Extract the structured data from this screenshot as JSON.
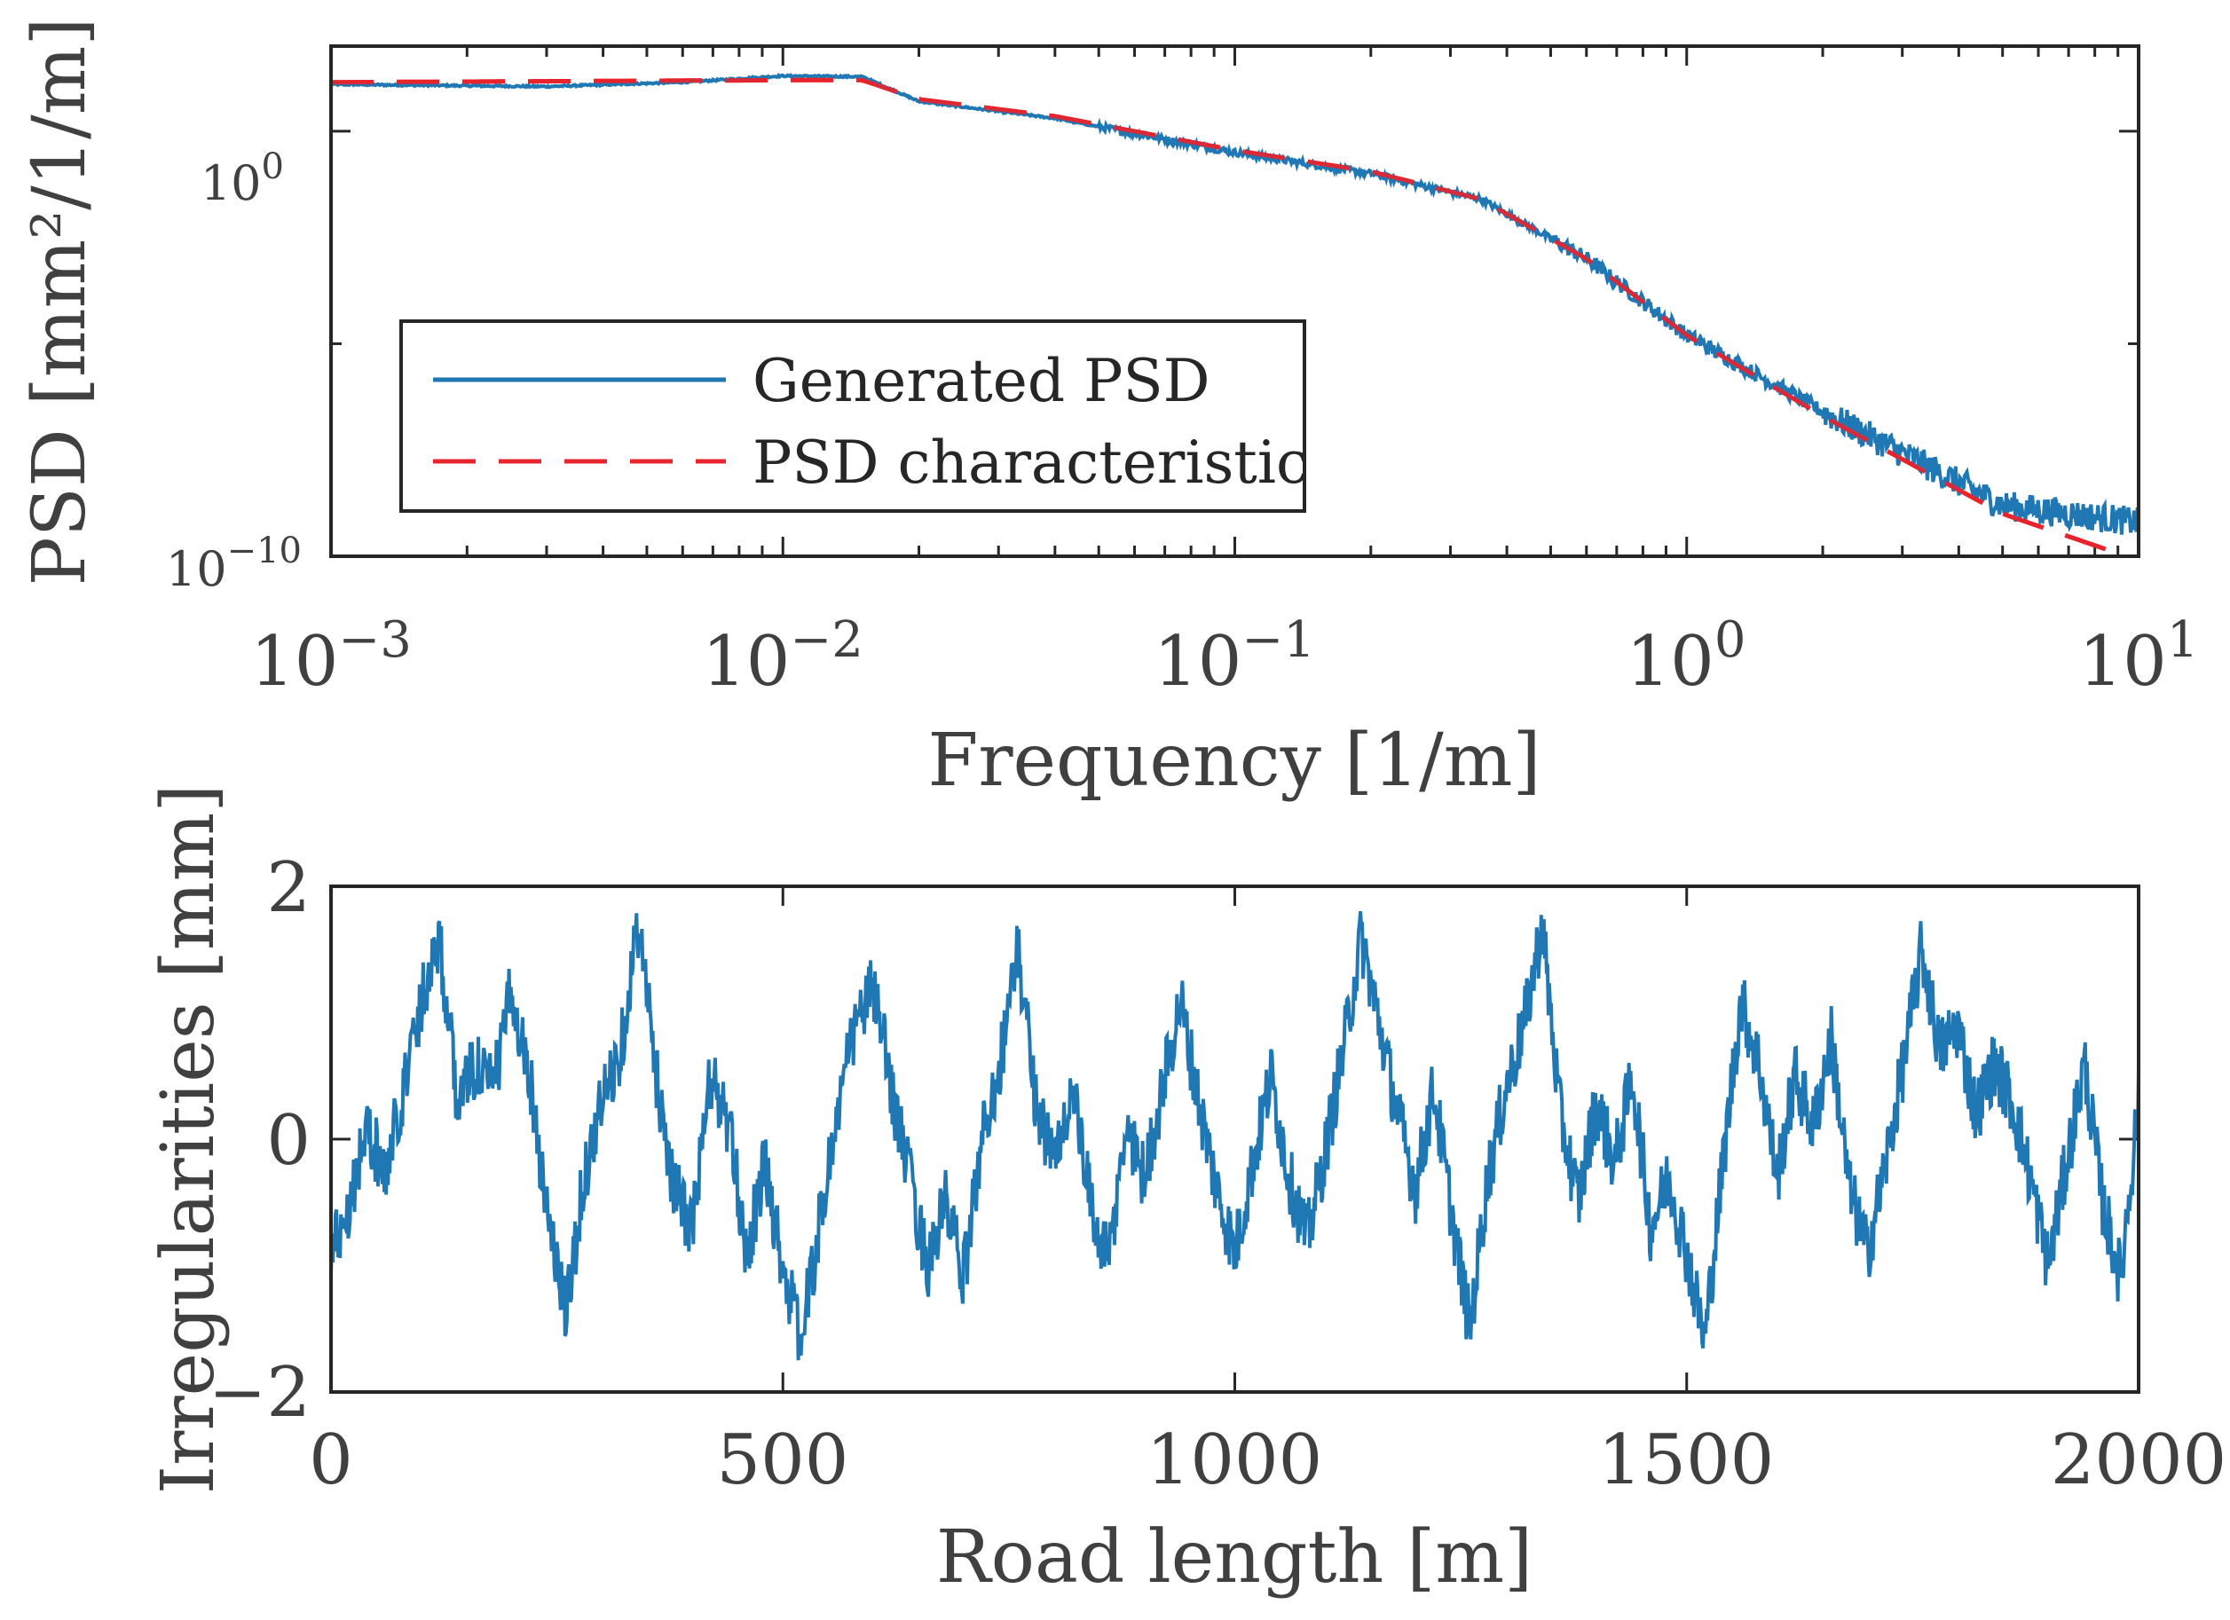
{
  "chart_data": [
    {
      "type": "line",
      "xscale": "log",
      "yscale": "log",
      "xlabel": "Frequency [1/m]",
      "ylabel": "PSD [mm²/1/m]",
      "xlim": [
        0.001,
        10
      ],
      "ylim_log10": [
        -10,
        2
      ],
      "xticks": [
        {
          "base": "10",
          "exp": "−3"
        },
        {
          "base": "10",
          "exp": "−2"
        },
        {
          "base": "10",
          "exp": "−1"
        },
        {
          "base": "10",
          "exp": "0"
        },
        {
          "base": "10",
          "exp": "1"
        }
      ],
      "yticks": [
        {
          "base": "10",
          "exp": "−10",
          "value_log10": -10
        },
        {
          "base": "10",
          "exp": "0",
          "value_log10": 0
        }
      ],
      "legend": {
        "location": "bottom-left",
        "entries": [
          "Generated PSD",
          "PSD characteristic"
        ]
      },
      "series": [
        {
          "name": "Generated PSD",
          "color": "#1f77b4",
          "style": "solid",
          "noise": true,
          "x": [
            0.001,
            0.003,
            0.006,
            0.01,
            0.015,
            0.02,
            0.04,
            0.1,
            0.2,
            0.35,
            0.6,
            1,
            2,
            5,
            10
          ],
          "y_log10": [
            1.1,
            1.05,
            1.15,
            1.3,
            1.28,
            0.7,
            0.3,
            -0.5,
            -1.0,
            -1.6,
            -3.0,
            -4.8,
            -6.6,
            -8.8,
            -9.2
          ]
        },
        {
          "name": "PSD characteristic",
          "color": "#e8242c",
          "style": "dashed",
          "noise": false,
          "x": [
            0.001,
            0.01,
            0.015,
            0.02,
            0.04,
            0.1,
            0.2,
            0.35,
            0.6,
            1,
            2,
            5,
            10
          ],
          "y_log10": [
            1.15,
            1.2,
            1.2,
            0.75,
            0.35,
            -0.45,
            -0.95,
            -1.6,
            -3.0,
            -4.8,
            -6.7,
            -9.0,
            -10.1
          ]
        }
      ]
    },
    {
      "type": "line",
      "xlabel": "Road length [m]",
      "ylabel": "Irregularities [mm]",
      "xlim": [
        0,
        2000
      ],
      "ylim": [
        -2,
        2
      ],
      "xticks": [
        "0",
        "500",
        "1000",
        "1500",
        "2000"
      ],
      "yticks": [
        "−2",
        "0",
        "2"
      ],
      "series": [
        {
          "name": "Irregularities",
          "color": "#1f77b4",
          "x": [
            0,
            20,
            40,
            60,
            80,
            100,
            110,
            120,
            130,
            140,
            160,
            180,
            200,
            220,
            240,
            260,
            280,
            300,
            320,
            340,
            360,
            380,
            400,
            420,
            440,
            460,
            480,
            500,
            520,
            540,
            560,
            580,
            600,
            620,
            640,
            660,
            680,
            700,
            720,
            740,
            760,
            780,
            800,
            820,
            840,
            860,
            880,
            900,
            920,
            940,
            960,
            980,
            1000,
            1020,
            1040,
            1060,
            1080,
            1100,
            1120,
            1140,
            1160,
            1180,
            1200,
            1220,
            1240,
            1260,
            1280,
            1300,
            1320,
            1340,
            1360,
            1380,
            1400,
            1420,
            1440,
            1460,
            1480,
            1500,
            1520,
            1540,
            1560,
            1580,
            1600,
            1620,
            1640,
            1660,
            1680,
            1700,
            1720,
            1740,
            1760,
            1780,
            1800,
            1820,
            1840,
            1860,
            1880,
            1900,
            1920,
            1940,
            1960,
            1980,
            2000
          ],
          "y": [
            -0.9,
            -0.5,
            0.1,
            -0.3,
            0.4,
            1.1,
            1.4,
            1.6,
            0.9,
            0.3,
            0.6,
            0.4,
            1.2,
            0.5,
            -0.6,
            -1.4,
            -0.3,
            0.3,
            0.7,
            1.7,
            0.5,
            -0.4,
            -0.7,
            0.5,
            0.1,
            -0.9,
            -0.2,
            -1.0,
            -1.6,
            -0.7,
            0.2,
            0.9,
            1.2,
            0.4,
            -0.3,
            -1.0,
            -0.5,
            -1.1,
            0.0,
            0.6,
            1.5,
            0.3,
            -0.2,
            0.4,
            -0.5,
            -1.0,
            0.1,
            -0.3,
            0.4,
            1.1,
            0.3,
            -0.4,
            -0.9,
            -0.2,
            0.5,
            -0.3,
            -0.8,
            -0.1,
            0.7,
            1.6,
            0.9,
            0.2,
            -0.4,
            0.4,
            -0.6,
            -1.5,
            -0.3,
            0.4,
            0.9,
            1.7,
            0.2,
            -0.5,
            0.3,
            -0.2,
            0.5,
            -0.7,
            -0.3,
            -0.9,
            -1.6,
            -0.2,
            1.1,
            0.6,
            -0.3,
            0.5,
            0.1,
            0.8,
            -0.4,
            -0.9,
            -0.2,
            0.6,
            1.5,
            0.7,
            0.9,
            0.2,
            0.6,
            0.3,
            -0.3,
            -1.0,
            -0.2,
            0.6,
            -0.5,
            -1.1,
            0.3
          ]
        }
      ]
    }
  ]
}
